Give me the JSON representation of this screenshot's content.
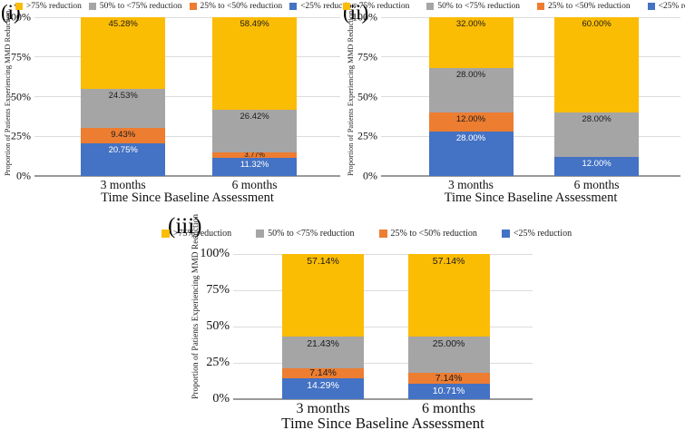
{
  "colors": {
    "yellow": "#FBBC04",
    "gray": "#A5A5A5",
    "orange": "#ED7D31",
    "blue": "#4472C4",
    "gridline": "#dcdcdc",
    "axis_line": "#999999",
    "label_dark": "#1c1c1c",
    "label_on_blue": "#ffffff"
  },
  "legend": {
    "position": "top",
    "items": [
      {
        "label": ">75% reduction",
        "color_key": "yellow"
      },
      {
        "label": "50% to <75% reduction",
        "color_key": "gray"
      },
      {
        "label": "25% to <50% reduction",
        "color_key": "orange"
      },
      {
        "label": "<25% reduction",
        "color_key": "blue"
      }
    ]
  },
  "axis": {
    "y_ticks": [
      "100%",
      "75%",
      "50%",
      "25%",
      "0%"
    ],
    "y_label": "Proportion of Patients Experiencing MMD Reduction",
    "x_label": "Time Since Baseline Assessment",
    "categories": [
      "3 months",
      "6 months"
    ]
  },
  "chart_data": [
    {
      "panel_label": "(i)",
      "type": "bar",
      "subtype": "stacked-percent",
      "categories": [
        "3 months",
        "6 months"
      ],
      "xlabel": "Time Since Baseline Assessment",
      "ylabel": "Proportion of Patients Experiencing MMD Reduction",
      "ylim": [
        0,
        100
      ],
      "grid": true,
      "legend_position": "top",
      "series": [
        {
          "name": "<25% reduction",
          "color_key": "blue",
          "values": [
            20.75,
            11.32
          ]
        },
        {
          "name": "25% to <50% reduction",
          "color_key": "orange",
          "values": [
            9.43,
            3.77
          ]
        },
        {
          "name": "50% to <75% reduction",
          "color_key": "gray",
          "values": [
            24.53,
            26.42
          ]
        },
        {
          "name": ">75% reduction",
          "color_key": "yellow",
          "values": [
            45.28,
            58.49
          ]
        }
      ]
    },
    {
      "panel_label": "(ii)",
      "type": "bar",
      "subtype": "stacked-percent",
      "categories": [
        "3 months",
        "6 months"
      ],
      "xlabel": "Time Since Baseline Assessment",
      "ylabel": "Proportion of Patients Experiencing MMD Reduction",
      "ylim": [
        0,
        100
      ],
      "grid": true,
      "legend_position": "top",
      "series": [
        {
          "name": "<25% reduction",
          "color_key": "blue",
          "values": [
            28.0,
            12.0
          ]
        },
        {
          "name": "25% to <50% reduction",
          "color_key": "orange",
          "values": [
            12.0,
            0
          ]
        },
        {
          "name": "50% to <75% reduction",
          "color_key": "gray",
          "values": [
            28.0,
            28.0
          ]
        },
        {
          "name": ">75% reduction",
          "color_key": "yellow",
          "values": [
            32.0,
            60.0
          ]
        }
      ]
    },
    {
      "panel_label": "(iii)",
      "type": "bar",
      "subtype": "stacked-percent",
      "categories": [
        "3 months",
        "6 months"
      ],
      "xlabel": "Time Since Baseline Assessment",
      "ylabel": "Proportion of Patients Experiencing MMD Reduction",
      "ylim": [
        0,
        100
      ],
      "grid": true,
      "legend_position": "top",
      "series": [
        {
          "name": "<25% reduction",
          "color_key": "blue",
          "values": [
            14.29,
            10.71
          ]
        },
        {
          "name": "25% to <50% reduction",
          "color_key": "orange",
          "values": [
            7.14,
            7.14
          ]
        },
        {
          "name": "50% to <75% reduction",
          "color_key": "gray",
          "values": [
            21.43,
            25.0
          ]
        },
        {
          "name": ">75% reduction",
          "color_key": "yellow",
          "values": [
            57.14,
            57.14
          ]
        }
      ]
    }
  ]
}
